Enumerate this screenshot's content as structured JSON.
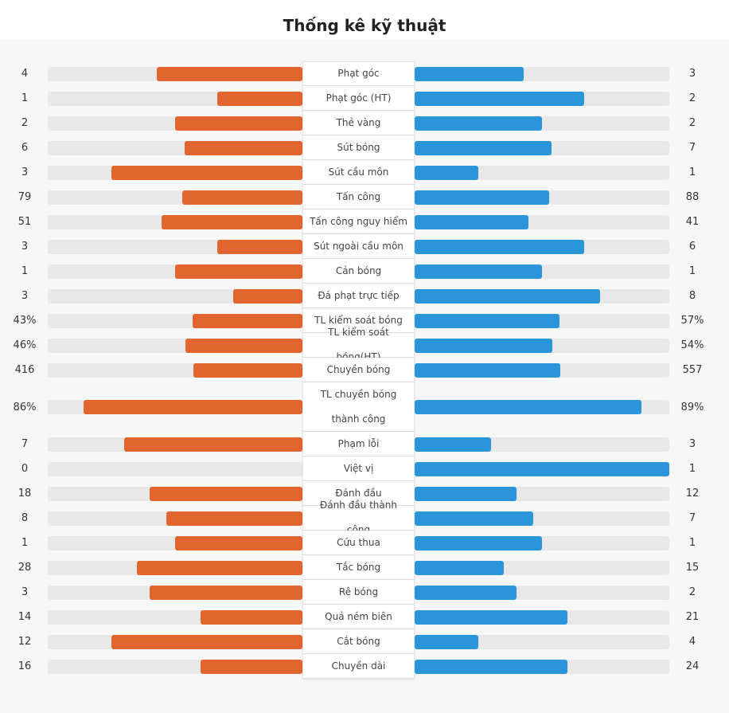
{
  "title": "Thống kê kỹ thuật",
  "colors": {
    "home": "#e0652f",
    "away": "#2a96d9",
    "track": "#e8e8e8"
  },
  "stats": [
    {
      "label": "Phạt góc",
      "home": "4",
      "away": "3"
    },
    {
      "label": "Phạt góc (HT)",
      "home": "1",
      "away": "2"
    },
    {
      "label": "Thẻ vàng",
      "home": "2",
      "away": "2"
    },
    {
      "label": "Sút bóng",
      "home": "6",
      "away": "7"
    },
    {
      "label": "Sút cầu môn",
      "home": "3",
      "away": "1"
    },
    {
      "label": "Tấn công",
      "home": "79",
      "away": "88"
    },
    {
      "label": "Tấn công nguy hiểm",
      "home": "51",
      "away": "41"
    },
    {
      "label": "Sút ngoài cầu môn",
      "home": "3",
      "away": "6"
    },
    {
      "label": "Cản bóng",
      "home": "1",
      "away": "1"
    },
    {
      "label": "Đá phạt trực tiếp",
      "home": "3",
      "away": "8"
    },
    {
      "label": "TL kiểm soát bóng",
      "home": "43%",
      "away": "57%"
    },
    {
      "label": "TL kiểm soát bóng(HT)",
      "home": "46%",
      "away": "54%"
    },
    {
      "label": "Chuyền bóng",
      "home": "416",
      "away": "557"
    },
    {
      "label": "TL chuyền bóng thành công",
      "home": "86%",
      "away": "89%"
    },
    {
      "label": "Phạm lỗi",
      "home": "7",
      "away": "3"
    },
    {
      "label": "Việt vị",
      "home": "0",
      "away": "1"
    },
    {
      "label": "Đánh đầu",
      "home": "18",
      "away": "12"
    },
    {
      "label": "Đánh đầu thành công",
      "home": "8",
      "away": "7"
    },
    {
      "label": "Cứu thua",
      "home": "1",
      "away": "1"
    },
    {
      "label": "Tắc bóng",
      "home": "28",
      "away": "15"
    },
    {
      "label": "Rê bóng",
      "home": "3",
      "away": "2"
    },
    {
      "label": "Quả ném biên",
      "home": "14",
      "away": "21"
    },
    {
      "label": "Cắt bóng",
      "home": "12",
      "away": "4"
    },
    {
      "label": "Chuyền dài",
      "home": "16",
      "away": "24"
    }
  ]
}
